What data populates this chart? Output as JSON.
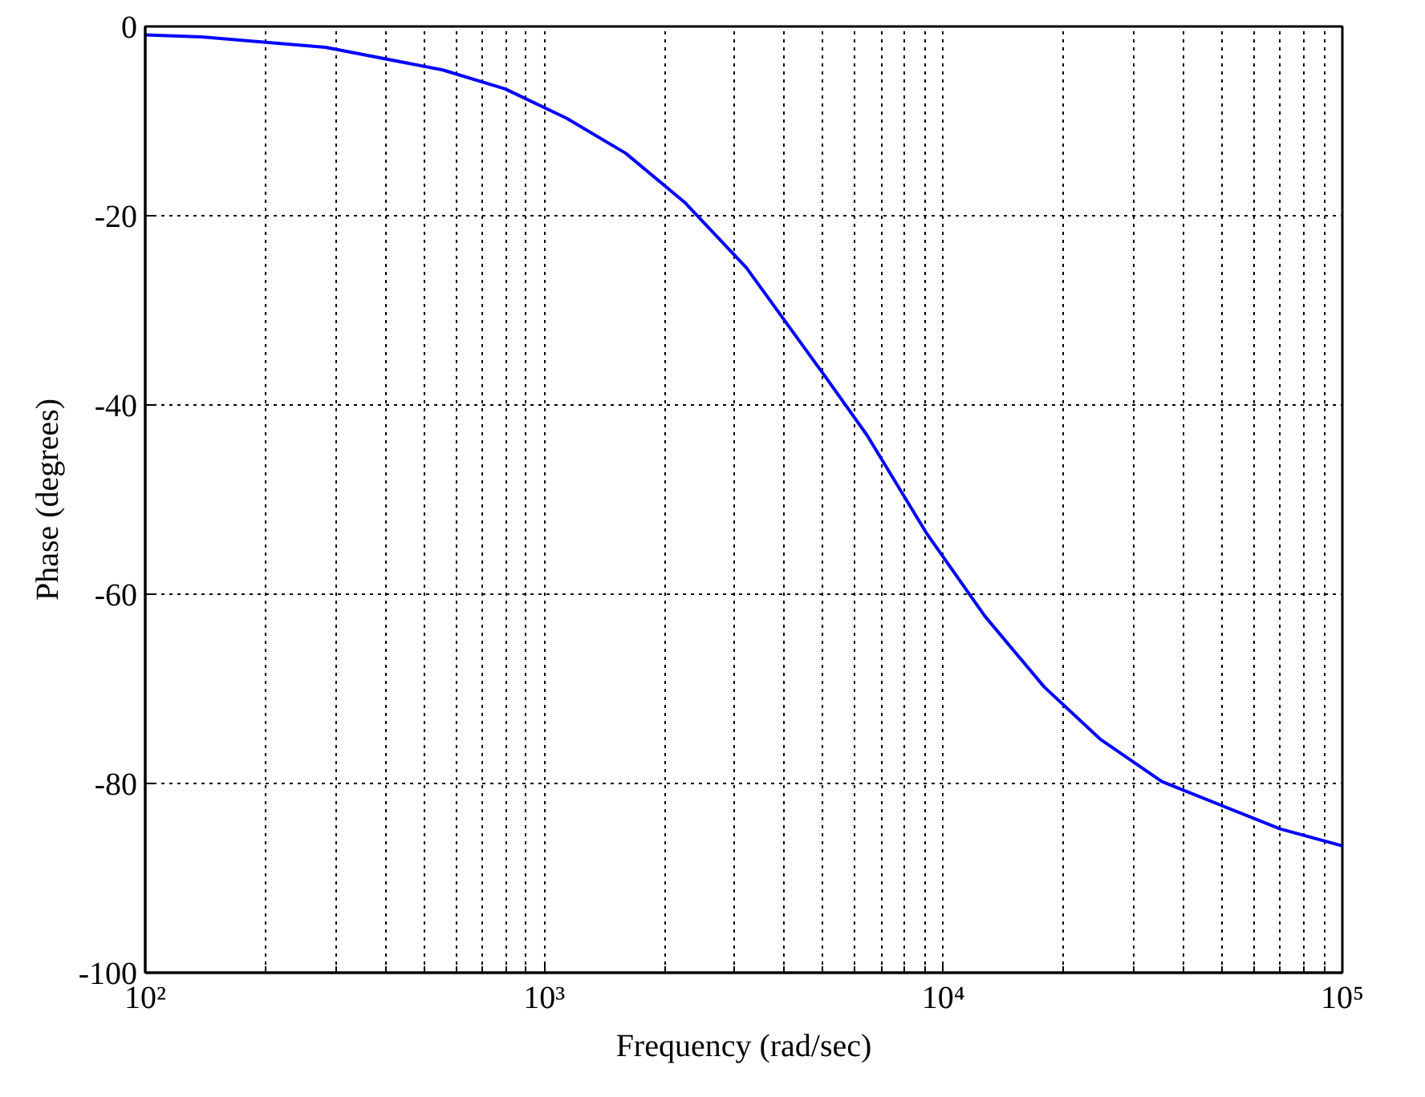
{
  "chart_data": {
    "type": "line",
    "xlabel": "Frequency (rad/sec)",
    "ylabel": "Phase (degrees)",
    "log": "x",
    "x": [
      100,
      138,
      283,
      557,
      798,
      1138,
      1600,
      2250,
      3210,
      5040,
      6440,
      9060,
      12700,
      17900,
      24700,
      35300,
      69800,
      100000
    ],
    "series": [
      {
        "color": "#0000ff",
        "values": [
          -0.9,
          -1.1,
          -2.2,
          -4.6,
          -6.6,
          -9.7,
          -13.4,
          -18.6,
          -25.5,
          -36.9,
          -43.2,
          -53.5,
          -62.3,
          -69.8,
          -75.3,
          -79.8,
          -84.8,
          -86.6
        ]
      }
    ],
    "xlim": [
      100,
      100000
    ],
    "ylim": [
      -100,
      0
    ],
    "xticks": [
      {
        "value": 100,
        "label": "10²"
      },
      {
        "value": 1000,
        "label": "10³"
      },
      {
        "value": 10000,
        "label": "10⁴"
      },
      {
        "value": 100000,
        "label": "10⁵"
      }
    ],
    "yticks": [
      -100,
      -80,
      -60,
      -40,
      -20,
      0
    ],
    "grid": true,
    "marker": "none",
    "line_style": "solid"
  }
}
